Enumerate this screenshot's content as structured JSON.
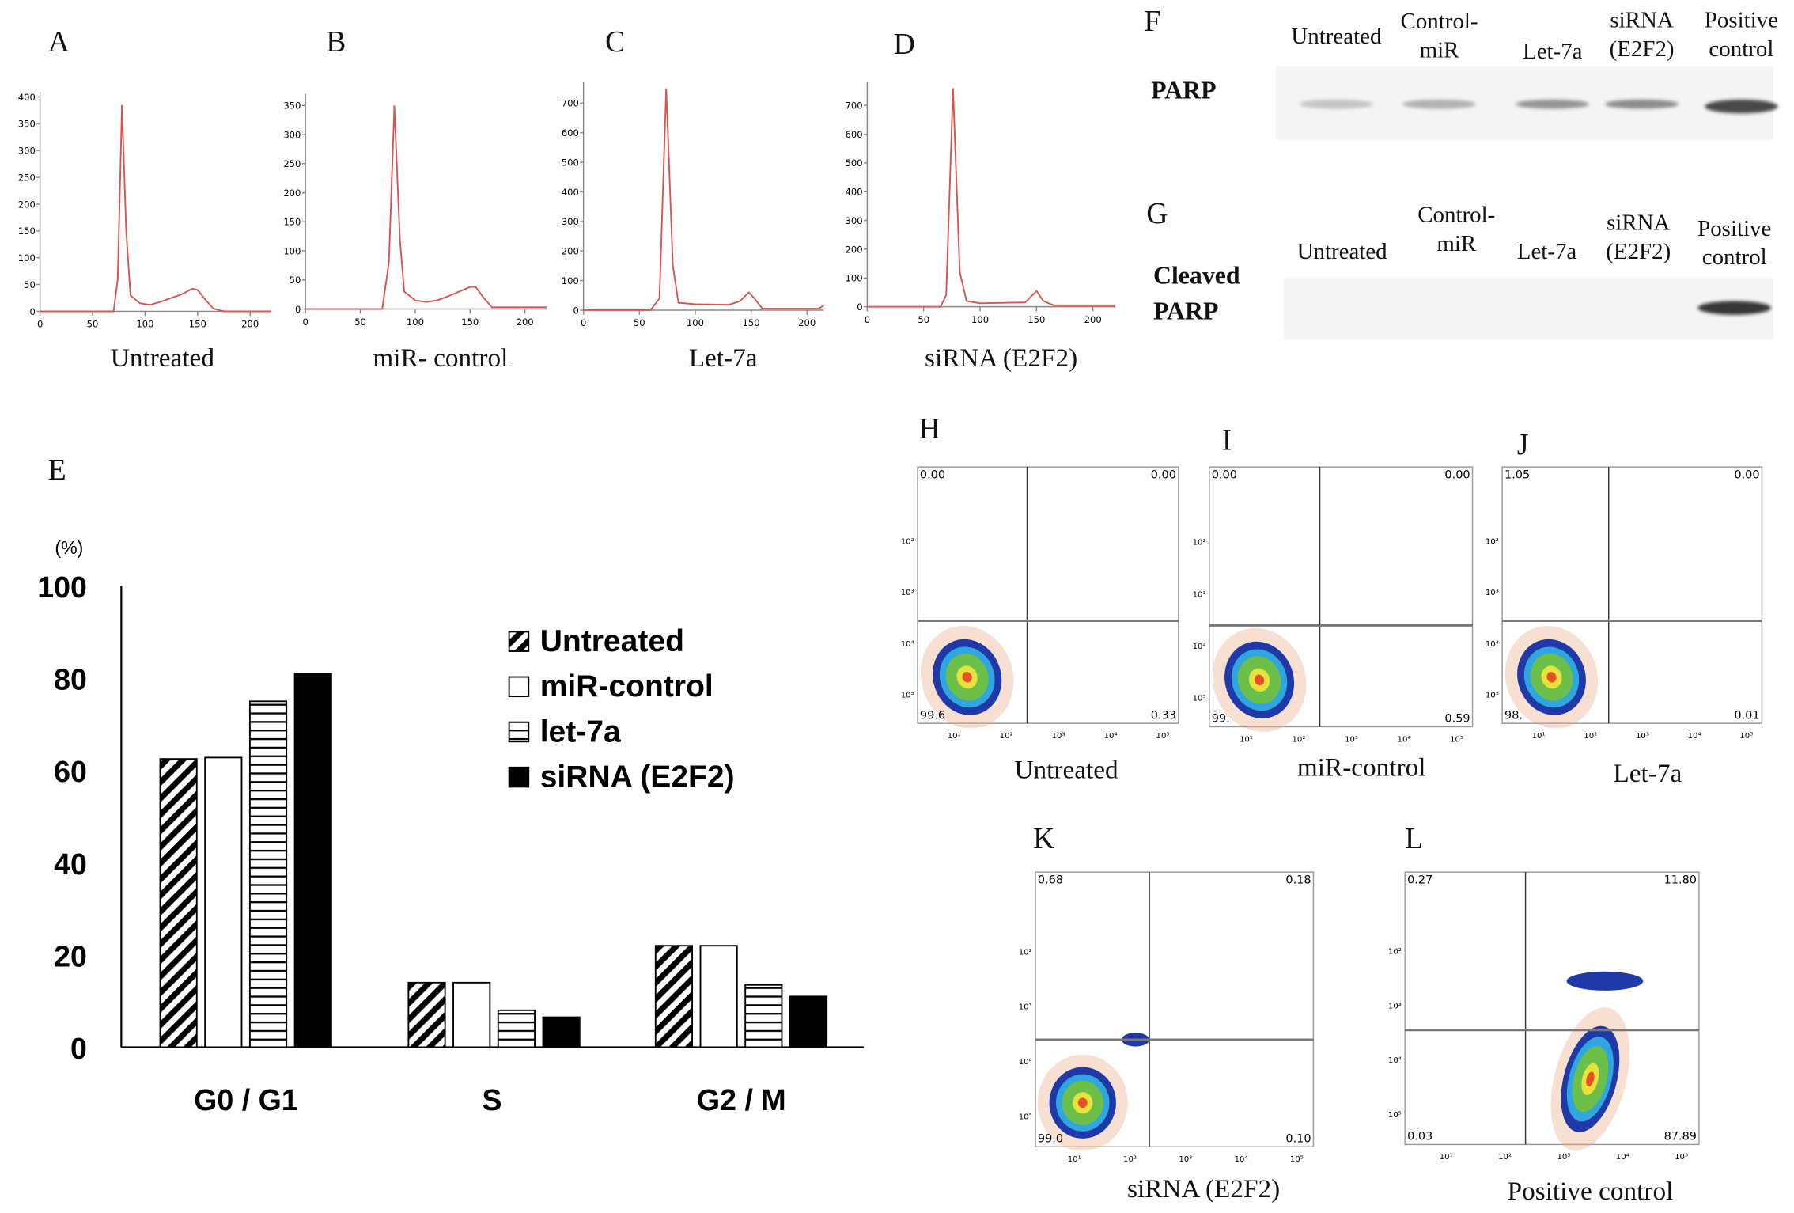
{
  "panels": {
    "A": "A",
    "B": "B",
    "C": "C",
    "D": "D",
    "E": "E",
    "F": "F",
    "G": "G",
    "H": "H",
    "I": "I",
    "J": "J",
    "K": "K",
    "L": "L"
  },
  "histograms": [
    {
      "id": "A",
      "caption": "Untreated",
      "xticks": [
        0,
        50,
        100,
        150,
        200
      ],
      "yticks": [
        0,
        50,
        100,
        150,
        200,
        250,
        300,
        350,
        400
      ],
      "xlim": [
        0,
        220
      ],
      "ylim": [
        0,
        410
      ],
      "points": [
        [
          0,
          0
        ],
        [
          70,
          0
        ],
        [
          74,
          60
        ],
        [
          78,
          385
        ],
        [
          82,
          150
        ],
        [
          86,
          30
        ],
        [
          95,
          15
        ],
        [
          105,
          12
        ],
        [
          115,
          18
        ],
        [
          125,
          25
        ],
        [
          135,
          32
        ],
        [
          145,
          42
        ],
        [
          150,
          40
        ],
        [
          158,
          20
        ],
        [
          165,
          5
        ],
        [
          175,
          0
        ],
        [
          220,
          0
        ]
      ]
    },
    {
      "id": "B",
      "caption": "miR- control",
      "xticks": [
        0,
        50,
        100,
        150,
        200
      ],
      "yticks": [
        0,
        50,
        100,
        150,
        200,
        250,
        300,
        350
      ],
      "xlim": [
        0,
        220
      ],
      "ylim": [
        0,
        370
      ],
      "points": [
        [
          0,
          0
        ],
        [
          70,
          0
        ],
        [
          76,
          80
        ],
        [
          81,
          350
        ],
        [
          86,
          120
        ],
        [
          90,
          30
        ],
        [
          100,
          15
        ],
        [
          110,
          12
        ],
        [
          120,
          15
        ],
        [
          130,
          22
        ],
        [
          140,
          30
        ],
        [
          150,
          38
        ],
        [
          155,
          38
        ],
        [
          162,
          20
        ],
        [
          170,
          3
        ],
        [
          220,
          3
        ]
      ]
    },
    {
      "id": "C",
      "caption": "Let-7a",
      "xticks": [
        0,
        50,
        100,
        150,
        200
      ],
      "yticks": [
        0,
        100,
        200,
        300,
        400,
        500,
        600,
        700
      ],
      "xlim": [
        0,
        215
      ],
      "ylim": [
        0,
        770
      ],
      "points": [
        [
          0,
          0
        ],
        [
          60,
          0
        ],
        [
          68,
          40
        ],
        [
          74,
          750
        ],
        [
          80,
          150
        ],
        [
          85,
          25
        ],
        [
          100,
          20
        ],
        [
          130,
          18
        ],
        [
          140,
          30
        ],
        [
          148,
          60
        ],
        [
          153,
          40
        ],
        [
          160,
          5
        ],
        [
          210,
          5
        ],
        [
          215,
          15
        ]
      ]
    },
    {
      "id": "D",
      "caption": "siRNA (E2F2)",
      "xticks": [
        0,
        50,
        100,
        150,
        200
      ],
      "yticks": [
        0,
        100,
        200,
        300,
        400,
        500,
        600,
        700
      ],
      "xlim": [
        0,
        220
      ],
      "ylim": [
        0,
        780
      ],
      "points": [
        [
          0,
          0
        ],
        [
          65,
          0
        ],
        [
          70,
          40
        ],
        [
          76,
          760
        ],
        [
          82,
          120
        ],
        [
          88,
          20
        ],
        [
          100,
          12
        ],
        [
          140,
          15
        ],
        [
          150,
          55
        ],
        [
          156,
          20
        ],
        [
          165,
          5
        ],
        [
          220,
          5
        ]
      ]
    }
  ],
  "westernF": {
    "protein": "PARP",
    "lanes": [
      "Untreated",
      "Control-\nmiR",
      "Let-7a",
      "siRNA\n(E2F2)",
      "Positive\ncontrol"
    ],
    "intensity": [
      0.25,
      0.35,
      0.5,
      0.55,
      0.9
    ]
  },
  "westernG": {
    "protein": "Cleaved\nPARP",
    "lanes": [
      "Untreated",
      "Control-\nmiR",
      "Let-7a",
      "siRNA\n(E2F2)",
      "Positive\ncontrol"
    ],
    "intensity": [
      0,
      0,
      0,
      0,
      1
    ]
  },
  "chart_data": {
    "type": "bar",
    "ylabel": "(%)",
    "ylim": [
      0,
      100
    ],
    "yticks": [
      0,
      20,
      40,
      60,
      80,
      100
    ],
    "categories": [
      "G0 / G1",
      "S",
      "G2 / M"
    ],
    "series": [
      {
        "name": "Untreated",
        "pattern": "diagonal",
        "values": [
          62.5,
          14,
          22
        ]
      },
      {
        "name": "miR-control",
        "pattern": "white",
        "values": [
          62.8,
          14,
          22
        ]
      },
      {
        "name": "let-7a",
        "pattern": "horizontal",
        "values": [
          75,
          8,
          13.5
        ]
      },
      {
        "name": "siRNA (E2F2)",
        "pattern": "black",
        "values": [
          81,
          6.5,
          11
        ]
      }
    ],
    "legend_position": "top-right"
  },
  "flow": [
    {
      "id": "H",
      "caption": "Untreated",
      "q": {
        "ul": "0.00",
        "ur": "0.00",
        "ll": "99.6",
        "lr": "0.33"
      }
    },
    {
      "id": "I",
      "caption": "miR-control",
      "q": {
        "ul": "0.00",
        "ur": "0.00",
        "ll": "99.",
        "lr": "0.59"
      }
    },
    {
      "id": "J",
      "caption": "Let-7a",
      "q": {
        "ul": "1.05",
        "ur": "0.00",
        "ll": "98.",
        "lr": "0.01"
      }
    },
    {
      "id": "K",
      "caption": "siRNA (E2F2)",
      "q": {
        "ul": "0.68",
        "ur": "0.18",
        "ll": "99.0",
        "lr": "0.10"
      }
    },
    {
      "id": "L",
      "caption": "Positive control",
      "q": {
        "ul": "0.27",
        "ur": "11.80",
        "ll": "0.03",
        "lr": "87.89"
      }
    }
  ],
  "flow_axis_ticks": [
    "10¹",
    "10²",
    "10³",
    "10⁴",
    "10⁵"
  ]
}
